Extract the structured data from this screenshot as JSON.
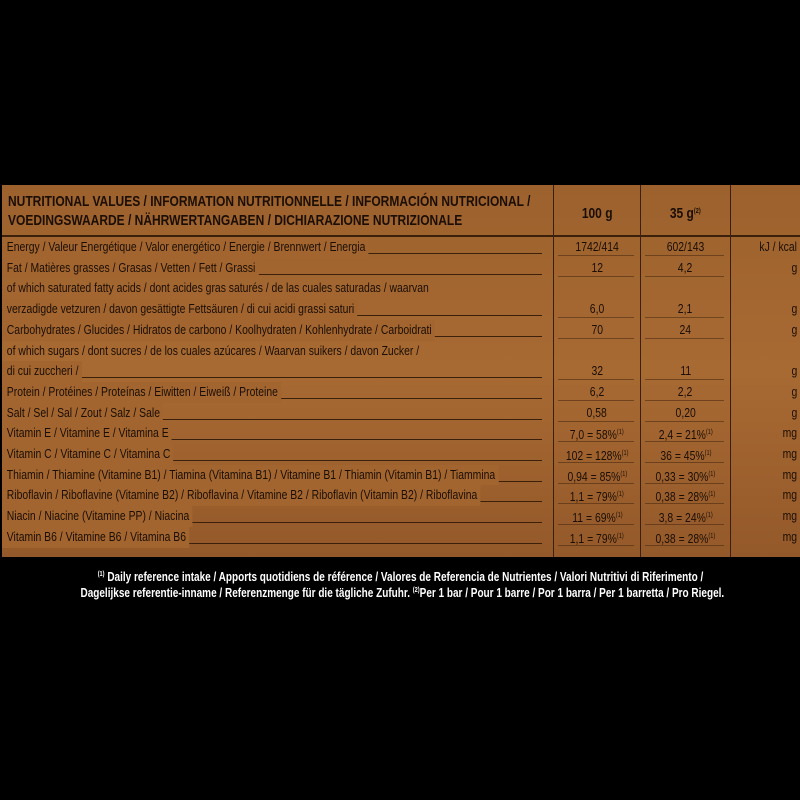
{
  "header": {
    "title": [
      "NUTRITIONAL VALUES / INFORMATION NUTRITIONNELLE / INFORMACIÓN NUTRICIONAL /",
      "VOEDINGSWAARDE / NÄHRWERTANGABEN / DICHIARAZIONE NUTRIZIONALE"
    ],
    "per100": "100 g",
    "per35": "35 g",
    "per35_ref": "(2)"
  },
  "rows": [
    {
      "label": [
        "Energy / Valeur Energétique / Valor energético / Energie / Brennwert / Energia"
      ],
      "per100": "1742/414",
      "per35": "602/143",
      "unit": "kJ / kcal"
    },
    {
      "label": [
        "Fat / Matières grasses / Grasas / Vetten / Fett / Grassi"
      ],
      "per100": "12",
      "per35": "4,2",
      "unit": "g"
    },
    {
      "label": [
        "of which saturated fatty acids / dont acides gras saturés / de las cuales saturadas / waarvan",
        "verzadigde vetzuren / davon gesättigte Fettsäuren / di cui acidi grassi saturi"
      ],
      "per100": "6,0",
      "per35": "2,1",
      "unit": "g"
    },
    {
      "label": [
        "Carbohydrates / Glucides / Hidratos de carbono / Koolhydraten / Kohlenhydrate / Carboidrati"
      ],
      "per100": "70",
      "per35": "24",
      "unit": "g"
    },
    {
      "label": [
        "of which sugars / dont sucres / de los cuales azúcares / Waarvan suikers / davon Zucker /",
        "di cui zuccheri /"
      ],
      "per100": "32",
      "per35": "11",
      "unit": "g"
    },
    {
      "label": [
        "Protein / Protéines / Proteínas  / Eiwitten / Eiweiß / Proteine"
      ],
      "per100": "6,2",
      "per35": "2,2",
      "unit": "g"
    },
    {
      "label": [
        "Salt / Sel / Sal / Zout / Salz / Sale"
      ],
      "per100": "0,58",
      "per35": "0,20",
      "unit": "g"
    },
    {
      "label": [
        "Vitamin E / Vitamine E / Vitamina E"
      ],
      "per100": "7,0 = 58%",
      "per100_ref": "(1)",
      "per35": "2,4 = 21%",
      "per35_ref": "(1)",
      "unit": "mg"
    },
    {
      "label": [
        "Vitamin C / Vitamine C / Vitamina C"
      ],
      "per100": "102 = 128%",
      "per100_ref": "(1)",
      "per35": "36 = 45%",
      "per35_ref": "(1)",
      "unit": "mg"
    },
    {
      "label": [
        "Thiamin / Thiamine (Vitamine B1) / Tiamina (Vitamina B1) / Vitamine B1 / Thiamin (Vitamin B1) / Tiammina"
      ],
      "per100": "0,94 = 85%",
      "per100_ref": "(1)",
      "per35": "0,33 = 30%",
      "per35_ref": "(1)",
      "unit": "mg"
    },
    {
      "label": [
        "Riboflavin / Riboflavine (Vitamine B2) / Riboflavina / Vitamine B2 / Riboflavin (Vitamin B2) / Riboflavina"
      ],
      "per100": "1,1 = 79%",
      "per100_ref": "(1)",
      "per35": "0,38 = 28%",
      "per35_ref": "(1)",
      "unit": "mg"
    },
    {
      "label": [
        "Niacin / Niacine (Vitamine PP) / Niacina"
      ],
      "per100": "11 = 69%",
      "per100_ref": "(1)",
      "per35": "3,8 = 24%",
      "per35_ref": "(1)",
      "unit": "mg"
    },
    {
      "label": [
        "Vitamin B6 / Vitamine B6 / Vitamina B6"
      ],
      "per100": "1,1 = 79%",
      "per100_ref": "(1)",
      "per35": "0,38 = 28%",
      "per35_ref": "(1)",
      "unit": "mg"
    }
  ],
  "footnote": {
    "ref1": "(1)",
    "line1": "Daily reference intake / Apports quotidiens de référence / Valores de Referencia de Nutrientes / Valori Nutritivi di Riferimento /",
    "line2": "Dagelijkse referentie-inname / Referenzmenge für die tägliche Zufuhr.",
    "ref2": "(2)",
    "line2b": "Per 1 bar / Pour 1 barre / Por 1 barra / Per 1 barretta / Pro Riegel."
  }
}
